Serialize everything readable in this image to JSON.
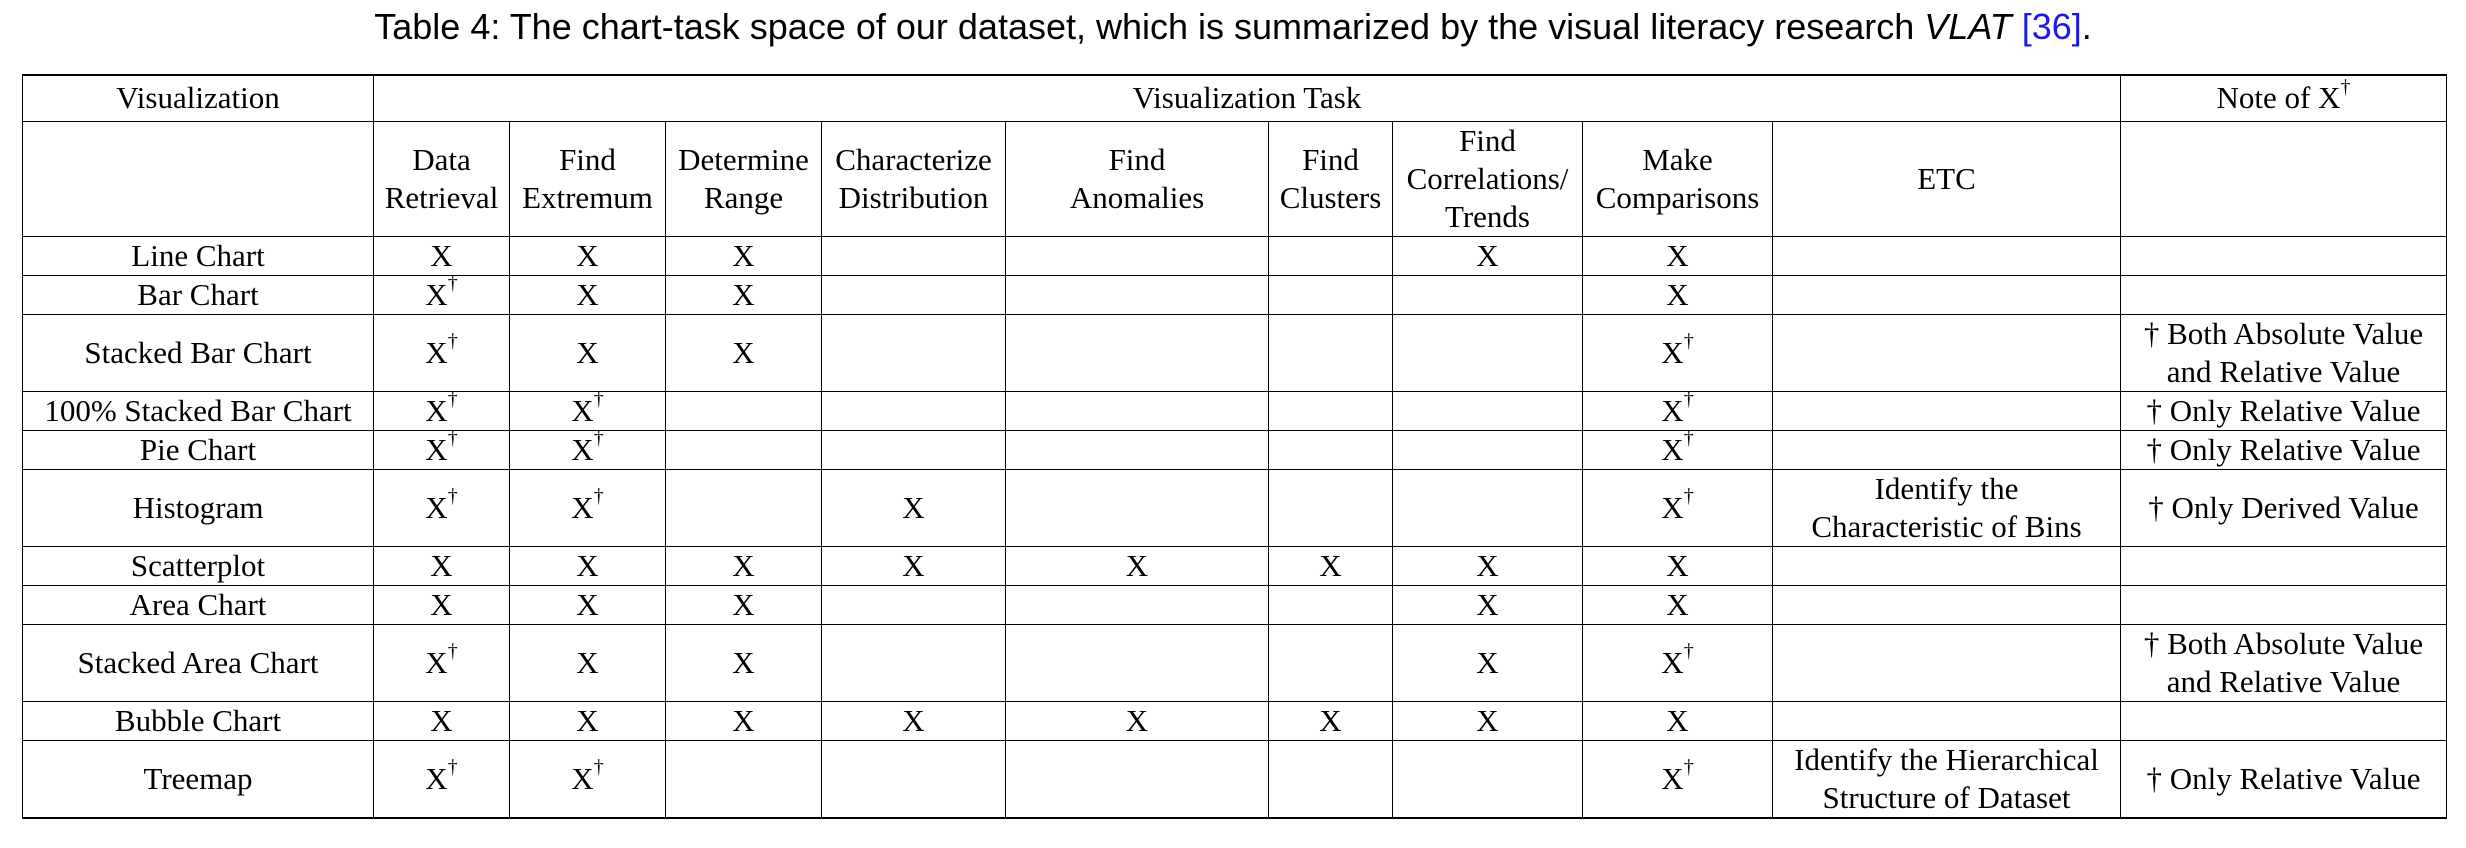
{
  "caption": {
    "prefix": "Table 4: The chart-task space of our dataset, which is summarized by the visual literacy research ",
    "italic": "VLAT",
    "cite": "[36]",
    "suffix": "."
  },
  "header": {
    "col_visualization": "Visualization",
    "col_task_group": "Visualization Task",
    "col_note": "Note of X",
    "col_note_sup": "†",
    "tasks": [
      [
        "Data",
        "Retrieval"
      ],
      [
        "Find",
        "Extremum"
      ],
      [
        "Determine",
        "Range"
      ],
      [
        "Characterize",
        "Distribution"
      ],
      [
        "Find",
        "Anomalies"
      ],
      [
        "Find",
        "Clusters"
      ],
      [
        "Find",
        "Correlations/",
        "Trends"
      ],
      [
        "Make",
        "Comparisons"
      ],
      [
        "ETC"
      ]
    ]
  },
  "rows": [
    {
      "name": "Line Chart",
      "cells": [
        "X",
        "X",
        "X",
        "",
        "",
        "",
        "X",
        "X"
      ],
      "etc": [],
      "note": []
    },
    {
      "name": "Bar Chart",
      "cells": [
        "X†",
        "X",
        "X",
        "",
        "",
        "",
        "",
        "X"
      ],
      "etc": [],
      "note": []
    },
    {
      "name": "Stacked Bar Chart",
      "cells": [
        "X†",
        "X",
        "X",
        "",
        "",
        "",
        "",
        "X†"
      ],
      "etc": [],
      "note": [
        "† Both Absolute Value",
        "and Relative Value"
      ]
    },
    {
      "name": "100% Stacked Bar Chart",
      "cells": [
        "X†",
        "X†",
        "",
        "",
        "",
        "",
        "",
        "X†"
      ],
      "etc": [],
      "note": [
        "† Only Relative Value"
      ]
    },
    {
      "name": "Pie Chart",
      "cells": [
        "X†",
        "X†",
        "",
        "",
        "",
        "",
        "",
        "X†"
      ],
      "etc": [],
      "note": [
        "† Only Relative Value"
      ]
    },
    {
      "name": "Histogram",
      "cells": [
        "X†",
        "X†",
        "",
        "X",
        "",
        "",
        "",
        "X†"
      ],
      "etc": [
        "Identify the",
        "Characteristic of Bins"
      ],
      "note": [
        "† Only Derived Value"
      ]
    },
    {
      "name": "Scatterplot",
      "cells": [
        "X",
        "X",
        "X",
        "X",
        "X",
        "X",
        "X",
        "X"
      ],
      "etc": [],
      "note": []
    },
    {
      "name": "Area Chart",
      "cells": [
        "X",
        "X",
        "X",
        "",
        "",
        "",
        "X",
        "X"
      ],
      "etc": [],
      "note": []
    },
    {
      "name": "Stacked Area Chart",
      "cells": [
        "X†",
        "X",
        "X",
        "",
        "",
        "",
        "X",
        "X†"
      ],
      "etc": [],
      "note": [
        "† Both Absolute Value",
        "and Relative Value"
      ]
    },
    {
      "name": "Bubble Chart",
      "cells": [
        "X",
        "X",
        "X",
        "X",
        "X",
        "X",
        "X",
        "X"
      ],
      "etc": [],
      "note": []
    },
    {
      "name": "Treemap",
      "cells": [
        "X†",
        "X†",
        "",
        "",
        "",
        "",
        "",
        "X†"
      ],
      "etc": [
        "Identify the Hierarchical",
        "Structure of Dataset"
      ],
      "note": [
        "† Only Relative Value"
      ]
    }
  ]
}
